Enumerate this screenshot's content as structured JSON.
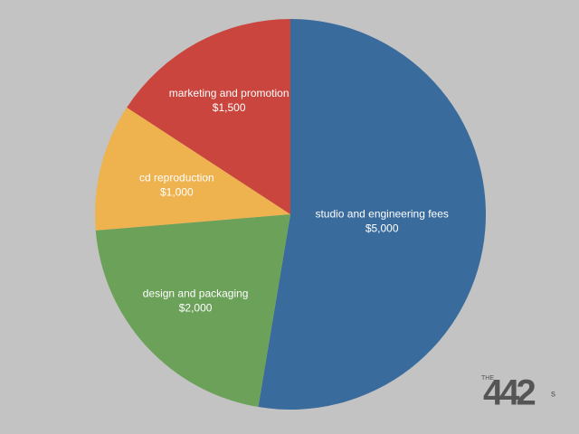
{
  "chart_data": {
    "type": "pie",
    "categories": [
      "studio and engineering fees",
      "design and packaging",
      "cd reproduction",
      "marketing and promotion"
    ],
    "values": [
      5000,
      2000,
      1000,
      1500
    ],
    "value_labels": [
      "$5,000",
      "$2,000",
      "$1,000",
      "$1,500"
    ],
    "colors": [
      "#3a6b9d",
      "#6ba158",
      "#eeb24e",
      "#c9453d"
    ],
    "start_angle": 0,
    "direction": "clockwise"
  },
  "logo": {
    "prefix": "THE",
    "number": "442",
    "suffix": "s"
  }
}
